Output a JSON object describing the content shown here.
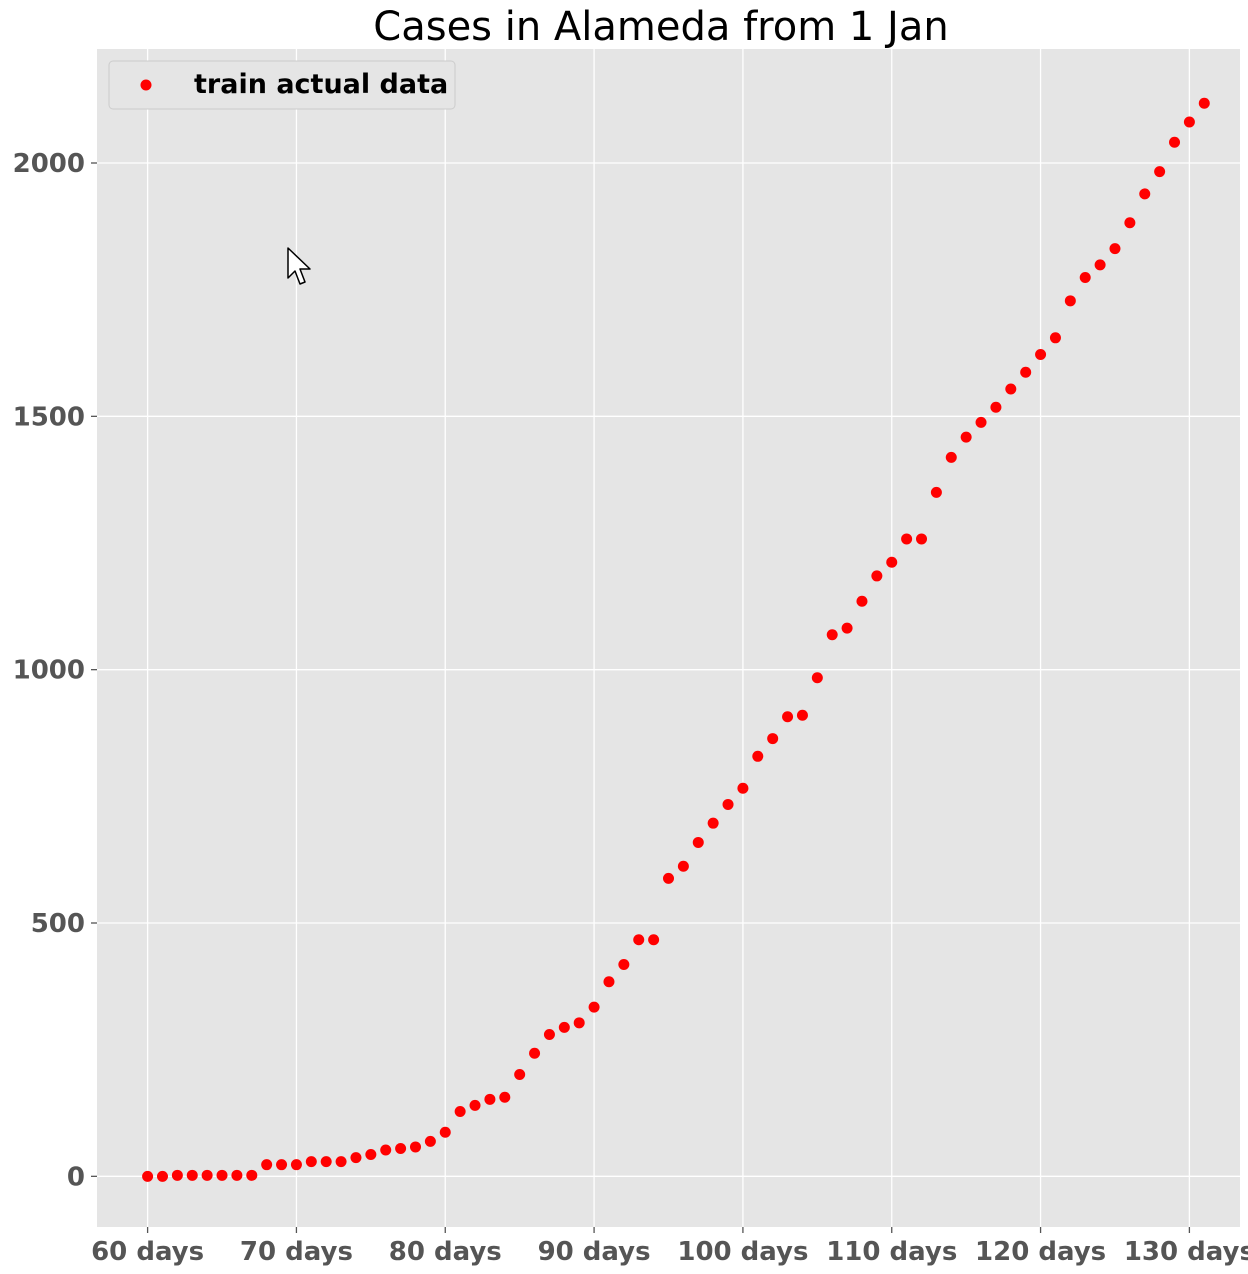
{
  "chart_data": {
    "type": "scatter",
    "title": "Cases in Alameda from 1 Jan",
    "xlabel": "",
    "ylabel": "",
    "x_unit_suffix": " days",
    "xlim": [
      56.6,
      133.4
    ],
    "ylim": [
      -100,
      2225
    ],
    "xticks": [
      60,
      70,
      80,
      90,
      100,
      110,
      120,
      130
    ],
    "yticks": [
      0,
      500,
      1000,
      1500,
      2000
    ],
    "grid": true,
    "legend_position": "top-left",
    "colors": {
      "marker": "#ff0000",
      "plot_bg": "#e5e5e5",
      "grid": "#ffffff",
      "tick": "#555555"
    },
    "series": [
      {
        "name": "train actual data",
        "x": [
          60,
          61,
          62,
          63,
          64,
          65,
          66,
          67,
          68,
          69,
          70,
          71,
          72,
          73,
          74,
          75,
          76,
          77,
          78,
          79,
          80,
          81,
          82,
          83,
          84,
          85,
          86,
          87,
          88,
          89,
          90,
          91,
          92,
          93,
          94,
          95,
          96,
          97,
          98,
          99,
          100,
          101,
          102,
          103,
          104,
          105,
          106,
          107,
          108,
          109,
          110,
          111,
          112,
          113,
          114,
          115,
          116,
          117,
          118,
          119,
          120,
          121,
          122,
          123,
          124,
          125,
          126,
          127,
          128,
          129,
          130,
          131
        ],
        "y": [
          0,
          0,
          2,
          2,
          2,
          2,
          2,
          2,
          23,
          23,
          23,
          29,
          29,
          29,
          37,
          43,
          52,
          55,
          58,
          69,
          87,
          128,
          140,
          152,
          156,
          201,
          243,
          280,
          294,
          303,
          334,
          384,
          418,
          467,
          467,
          588,
          612,
          659,
          697,
          734,
          766,
          829,
          864,
          907,
          910,
          984,
          1069,
          1082,
          1135,
          1185,
          1212,
          1258,
          1258,
          1350,
          1419,
          1459,
          1488,
          1518,
          1554,
          1587,
          1622,
          1655,
          1728,
          1774,
          1799,
          1831,
          1882,
          1939,
          1983,
          2041,
          2081,
          2118
        ]
      }
    ]
  },
  "cursor": {
    "icon": "mouse-pointer-icon"
  }
}
